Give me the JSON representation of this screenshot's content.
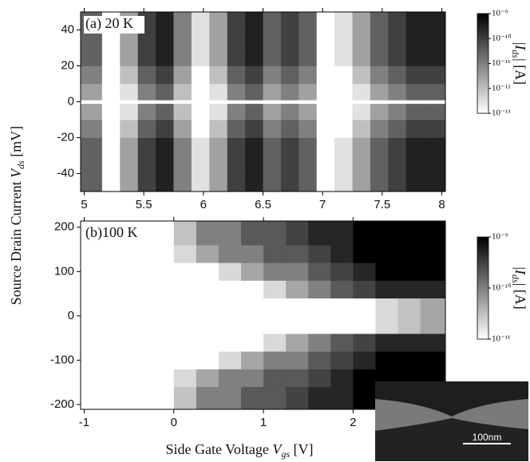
{
  "chart_data": [
    {
      "type": "heatmap",
      "annotation": "(a) 20 K",
      "x_edges": [
        4.97,
        5.15,
        5.3,
        5.45,
        5.6,
        5.75,
        5.9,
        6.05,
        6.2,
        6.35,
        6.5,
        6.65,
        6.8,
        6.95,
        7.1,
        7.25,
        7.4,
        7.55,
        7.7,
        7.85,
        8.03
      ],
      "y_edges": [
        -50,
        -40,
        -30,
        -20,
        -10,
        -1,
        1,
        10,
        20,
        30,
        40,
        50
      ],
      "values": [
        [
          3e-11,
          1e-13,
          3e-12,
          1e-10,
          3e-10,
          1e-11,
          3e-13,
          3e-12,
          1e-10,
          3e-10,
          3e-11,
          1e-10,
          3e-11,
          1e-13,
          3e-13,
          3e-12,
          3e-11,
          1e-10,
          3e-10,
          3e-10
        ],
        [
          3e-11,
          1e-13,
          3e-12,
          1e-10,
          3e-10,
          1e-11,
          3e-13,
          3e-12,
          1e-10,
          3e-10,
          3e-11,
          1e-10,
          3e-11,
          1e-13,
          3e-13,
          3e-12,
          3e-11,
          1e-10,
          3e-10,
          3e-10
        ],
        [
          3e-11,
          1e-13,
          3e-12,
          1e-10,
          3e-10,
          1e-11,
          3e-13,
          3e-12,
          1e-10,
          3e-10,
          3e-11,
          1e-10,
          3e-11,
          1e-13,
          3e-13,
          3e-12,
          3e-11,
          1e-10,
          3e-10,
          3e-10
        ],
        [
          1e-11,
          1e-13,
          1e-12,
          3e-11,
          1e-10,
          3e-12,
          1e-13,
          1e-12,
          3e-11,
          1e-10,
          1e-11,
          3e-11,
          1e-11,
          1e-13,
          1e-13,
          1e-12,
          1e-11,
          3e-11,
          1e-10,
          1e-10
        ],
        [
          3e-12,
          1e-13,
          3e-13,
          1e-11,
          3e-11,
          1e-12,
          1e-13,
          3e-13,
          1e-11,
          3e-11,
          3e-12,
          1e-11,
          3e-12,
          1e-13,
          1e-13,
          3e-13,
          3e-12,
          1e-11,
          3e-11,
          3e-11
        ],
        [
          1e-13,
          1e-13,
          1e-13,
          1e-13,
          1e-13,
          1e-13,
          1e-13,
          1e-13,
          1e-13,
          1e-13,
          1e-13,
          1e-13,
          1e-13,
          1e-13,
          1e-13,
          1e-13,
          1e-13,
          1e-13,
          1e-13,
          1e-13
        ],
        [
          3e-12,
          1e-13,
          3e-13,
          1e-11,
          3e-11,
          1e-12,
          1e-13,
          3e-13,
          1e-11,
          3e-11,
          3e-12,
          1e-11,
          3e-12,
          1e-13,
          1e-13,
          3e-13,
          3e-12,
          1e-11,
          3e-11,
          3e-11
        ],
        [
          1e-11,
          1e-13,
          1e-12,
          3e-11,
          1e-10,
          3e-12,
          1e-13,
          1e-12,
          3e-11,
          1e-10,
          1e-11,
          3e-11,
          1e-11,
          1e-13,
          1e-13,
          1e-12,
          1e-11,
          3e-11,
          1e-10,
          1e-10
        ],
        [
          3e-11,
          1e-13,
          3e-12,
          1e-10,
          3e-10,
          1e-11,
          3e-13,
          3e-12,
          1e-10,
          3e-10,
          3e-11,
          1e-10,
          3e-11,
          1e-13,
          3e-13,
          3e-12,
          3e-11,
          1e-10,
          3e-10,
          3e-10
        ],
        [
          3e-11,
          1e-13,
          3e-12,
          1e-10,
          3e-10,
          1e-11,
          3e-13,
          3e-12,
          1e-10,
          3e-10,
          3e-11,
          1e-10,
          3e-11,
          1e-13,
          3e-13,
          3e-12,
          3e-11,
          1e-10,
          3e-10,
          3e-10
        ],
        [
          3e-11,
          1e-13,
          3e-12,
          1e-10,
          3e-10,
          1e-11,
          3e-13,
          3e-12,
          1e-10,
          3e-10,
          3e-11,
          1e-10,
          3e-11,
          1e-13,
          3e-13,
          3e-12,
          3e-11,
          1e-10,
          3e-10,
          3e-10
        ]
      ],
      "xlim": [
        4.97,
        8.03
      ],
      "ylim": [
        -50,
        50
      ],
      "xticks": [
        5,
        5.5,
        6,
        6.5,
        7,
        7.5,
        8
      ],
      "yticks": [
        -40,
        -20,
        0,
        20,
        40
      ],
      "log_color": true,
      "clim": [
        1e-13,
        1e-09
      ],
      "cmap": [
        "#ffffff",
        "#000000"
      ],
      "cticks": [
        {
          "value": 1e-09,
          "label": "10⁻⁹"
        },
        {
          "value": 1e-10,
          "label": "10⁻¹⁰"
        },
        {
          "value": 1e-11,
          "label": "10⁻¹¹"
        },
        {
          "value": 1e-12,
          "label": "10⁻¹²"
        },
        {
          "value": 1e-13,
          "label": "10⁻¹³"
        }
      ],
      "colorbar_label": {
        "pre": "|",
        "var": "I",
        "sub": "ds",
        "post": "| [A]"
      },
      "ylabel": {
        "text": "Source Drain Current ",
        "var": "V",
        "sub": "ds",
        "unit": " [mV]"
      }
    },
    {
      "type": "heatmap",
      "annotation": "(b)100 K",
      "x_edges": [
        -1.04,
        -0.75,
        -0.5,
        -0.25,
        0,
        0.25,
        0.5,
        0.75,
        1,
        1.25,
        1.5,
        1.75,
        2,
        2.25,
        2.5,
        2.75,
        3.03
      ],
      "y_edges": [
        -211,
        -160,
        -120,
        -80,
        -40,
        0,
        40,
        80,
        120,
        160,
        214
      ],
      "values": [
        [
          1e-11,
          1e-11,
          1e-11,
          1e-11,
          3e-11,
          1e-10,
          1e-10,
          2e-10,
          2e-10,
          3e-10,
          5e-10,
          5e-10,
          1e-09,
          1e-09,
          1e-09,
          1e-09
        ],
        [
          1e-11,
          1e-11,
          1e-11,
          1e-11,
          2e-11,
          5e-11,
          1e-10,
          1e-10,
          2e-10,
          2e-10,
          3e-10,
          5e-10,
          1e-09,
          1e-09,
          1e-09,
          1e-09
        ],
        [
          1e-11,
          1e-11,
          1e-11,
          1e-11,
          1e-11,
          1e-11,
          2e-11,
          5e-11,
          1e-10,
          1e-10,
          2e-10,
          3e-10,
          5e-10,
          1e-09,
          1e-09,
          1e-09
        ],
        [
          1e-11,
          1e-11,
          1e-11,
          1e-11,
          1e-11,
          1e-11,
          1e-11,
          1e-11,
          2e-11,
          5e-11,
          1e-10,
          2e-10,
          3e-10,
          5e-10,
          5e-10,
          5e-10
        ],
        [
          1e-11,
          1e-11,
          1e-11,
          1e-11,
          1e-11,
          1e-11,
          1e-11,
          1e-11,
          1e-11,
          1e-11,
          1e-11,
          1e-11,
          1e-11,
          2e-11,
          3e-11,
          5e-11
        ],
        [
          1e-11,
          1e-11,
          1e-11,
          1e-11,
          1e-11,
          1e-11,
          1e-11,
          1e-11,
          1e-11,
          1e-11,
          1e-11,
          1e-11,
          1e-11,
          2e-11,
          3e-11,
          5e-11
        ],
        [
          1e-11,
          1e-11,
          1e-11,
          1e-11,
          1e-11,
          1e-11,
          1e-11,
          1e-11,
          2e-11,
          5e-11,
          1e-10,
          2e-10,
          3e-10,
          5e-10,
          5e-10,
          5e-10
        ],
        [
          1e-11,
          1e-11,
          1e-11,
          1e-11,
          1e-11,
          1e-11,
          2e-11,
          5e-11,
          1e-10,
          1e-10,
          2e-10,
          3e-10,
          5e-10,
          1e-09,
          1e-09,
          1e-09
        ],
        [
          1e-11,
          1e-11,
          1e-11,
          1e-11,
          2e-11,
          5e-11,
          1e-10,
          1e-10,
          2e-10,
          2e-10,
          3e-10,
          5e-10,
          1e-09,
          1e-09,
          1e-09,
          1e-09
        ],
        [
          1e-11,
          1e-11,
          1e-11,
          1e-11,
          3e-11,
          1e-10,
          1e-10,
          2e-10,
          2e-10,
          3e-10,
          5e-10,
          5e-10,
          1e-09,
          1e-09,
          1e-09,
          1e-09
        ]
      ],
      "xlim": [
        -1.04,
        3.03
      ],
      "ylim": [
        -211,
        214
      ],
      "xticks": [
        -1,
        0,
        1,
        2
      ],
      "yticks": [
        -200,
        -100,
        0,
        100,
        200
      ],
      "log_color": true,
      "clim": [
        1e-11,
        1e-09
      ],
      "cmap": [
        "#ffffff",
        "#000000"
      ],
      "cticks": [
        {
          "value": 1e-09,
          "label": "10⁻⁹"
        },
        {
          "value": 1e-10,
          "label": "10⁻¹⁰"
        },
        {
          "value": 1e-11,
          "label": "10⁻¹¹"
        }
      ],
      "colorbar_label": {
        "pre": "|",
        "var": "I",
        "sub": "ds",
        "post": "| [A]"
      },
      "xlabel": {
        "text": "Side Gate Voltage ",
        "var": "V",
        "sub": "gs",
        "unit": " [V]"
      }
    }
  ],
  "inset": {
    "scale_label": "100nm"
  }
}
